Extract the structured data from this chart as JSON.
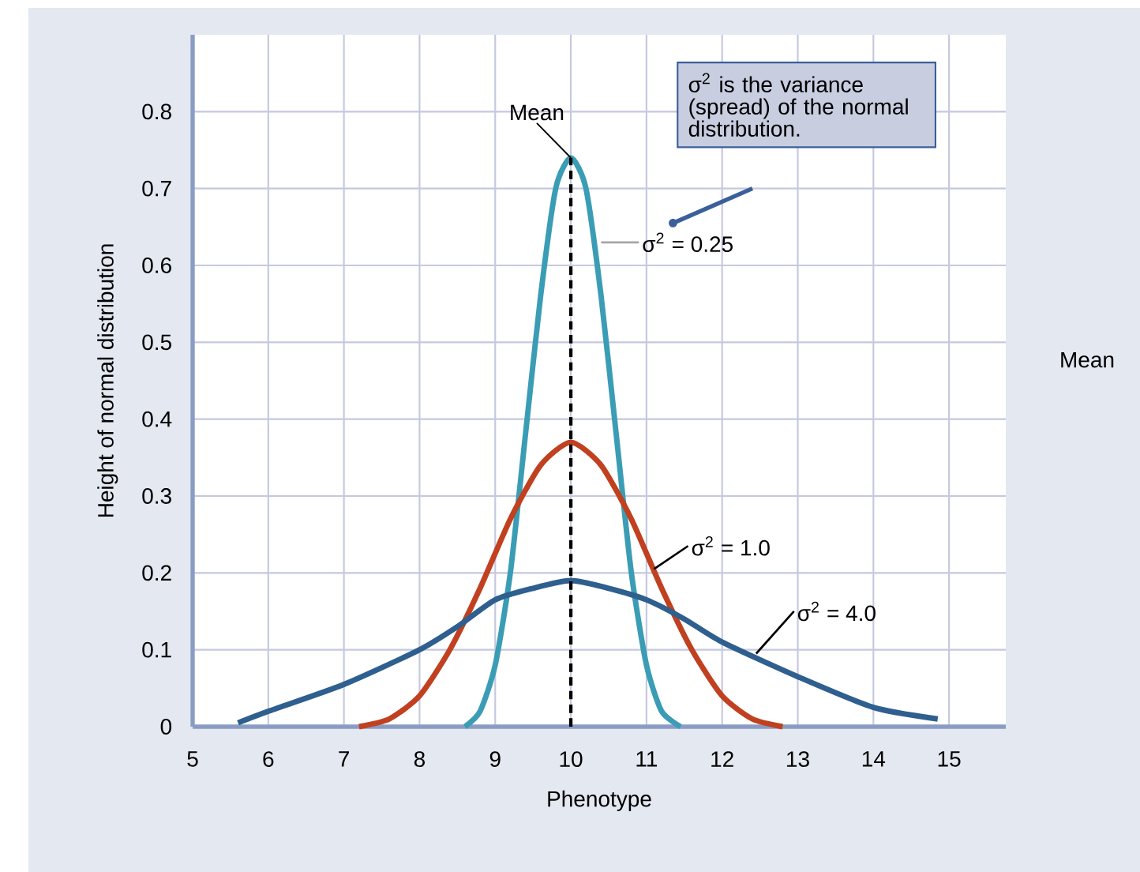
{
  "chart_data": {
    "type": "line",
    "xlabel": "Phenotype",
    "ylabel": "Height of normal distribution",
    "xlim": [
      5,
      15.75
    ],
    "ylim": [
      0,
      0.9
    ],
    "xticks": [
      5,
      6,
      7,
      8,
      9,
      10,
      11,
      12,
      13,
      14,
      15
    ],
    "yticks": [
      0,
      0.1,
      0.2,
      0.3,
      0.4,
      0.5,
      0.6,
      0.7,
      0.8
    ],
    "grid": true,
    "marker": "none",
    "series": [
      {
        "name": "σ$^{2}$ = 0.25",
        "color": "#3a9db5",
        "x": [
          8.6,
          8.8,
          9.0,
          9.2,
          9.4,
          9.6,
          9.8,
          10,
          10.2,
          10.4,
          10.6,
          10.8,
          11.0,
          11.2,
          11.45
        ],
        "values": [
          0,
          0.02,
          0.08,
          0.2,
          0.38,
          0.56,
          0.7,
          0.74,
          0.7,
          0.56,
          0.38,
          0.2,
          0.08,
          0.02,
          0
        ]
      },
      {
        "name": "σ$^{2}$ = 1.0",
        "color": "#c0401f",
        "x": [
          7.2,
          7.6,
          8.0,
          8.4,
          8.8,
          9.2,
          9.6,
          10,
          10.4,
          10.8,
          11.2,
          11.6,
          12.0,
          12.4,
          12.8
        ],
        "values": [
          0,
          0.01,
          0.04,
          0.1,
          0.18,
          0.27,
          0.34,
          0.37,
          0.34,
          0.27,
          0.18,
          0.1,
          0.04,
          0.01,
          0
        ]
      },
      {
        "name": "σ$^{2}$ = 4.0",
        "color": "#2e5f8f",
        "x": [
          5.6,
          6,
          7,
          8,
          8.5,
          9,
          9.5,
          10,
          10.5,
          11,
          11.5,
          12,
          13,
          14,
          14.85
        ],
        "values": [
          0.005,
          0.02,
          0.055,
          0.1,
          0.13,
          0.165,
          0.18,
          0.19,
          0.18,
          0.165,
          0.14,
          0.11,
          0.065,
          0.025,
          0.01
        ]
      },
      {
        "color": "#000000",
        "line_style": "dashed",
        "x": [
          10,
          10
        ],
        "values": [
          0,
          0.74
        ]
      }
    ],
    "annotations": [
      {
        "text": "Mean",
        "x": 10,
        "y": 0.74
      },
      "σ$^{2}$ is the variance (spread) of the normal distribution.",
      "Mean"
    ]
  }
}
